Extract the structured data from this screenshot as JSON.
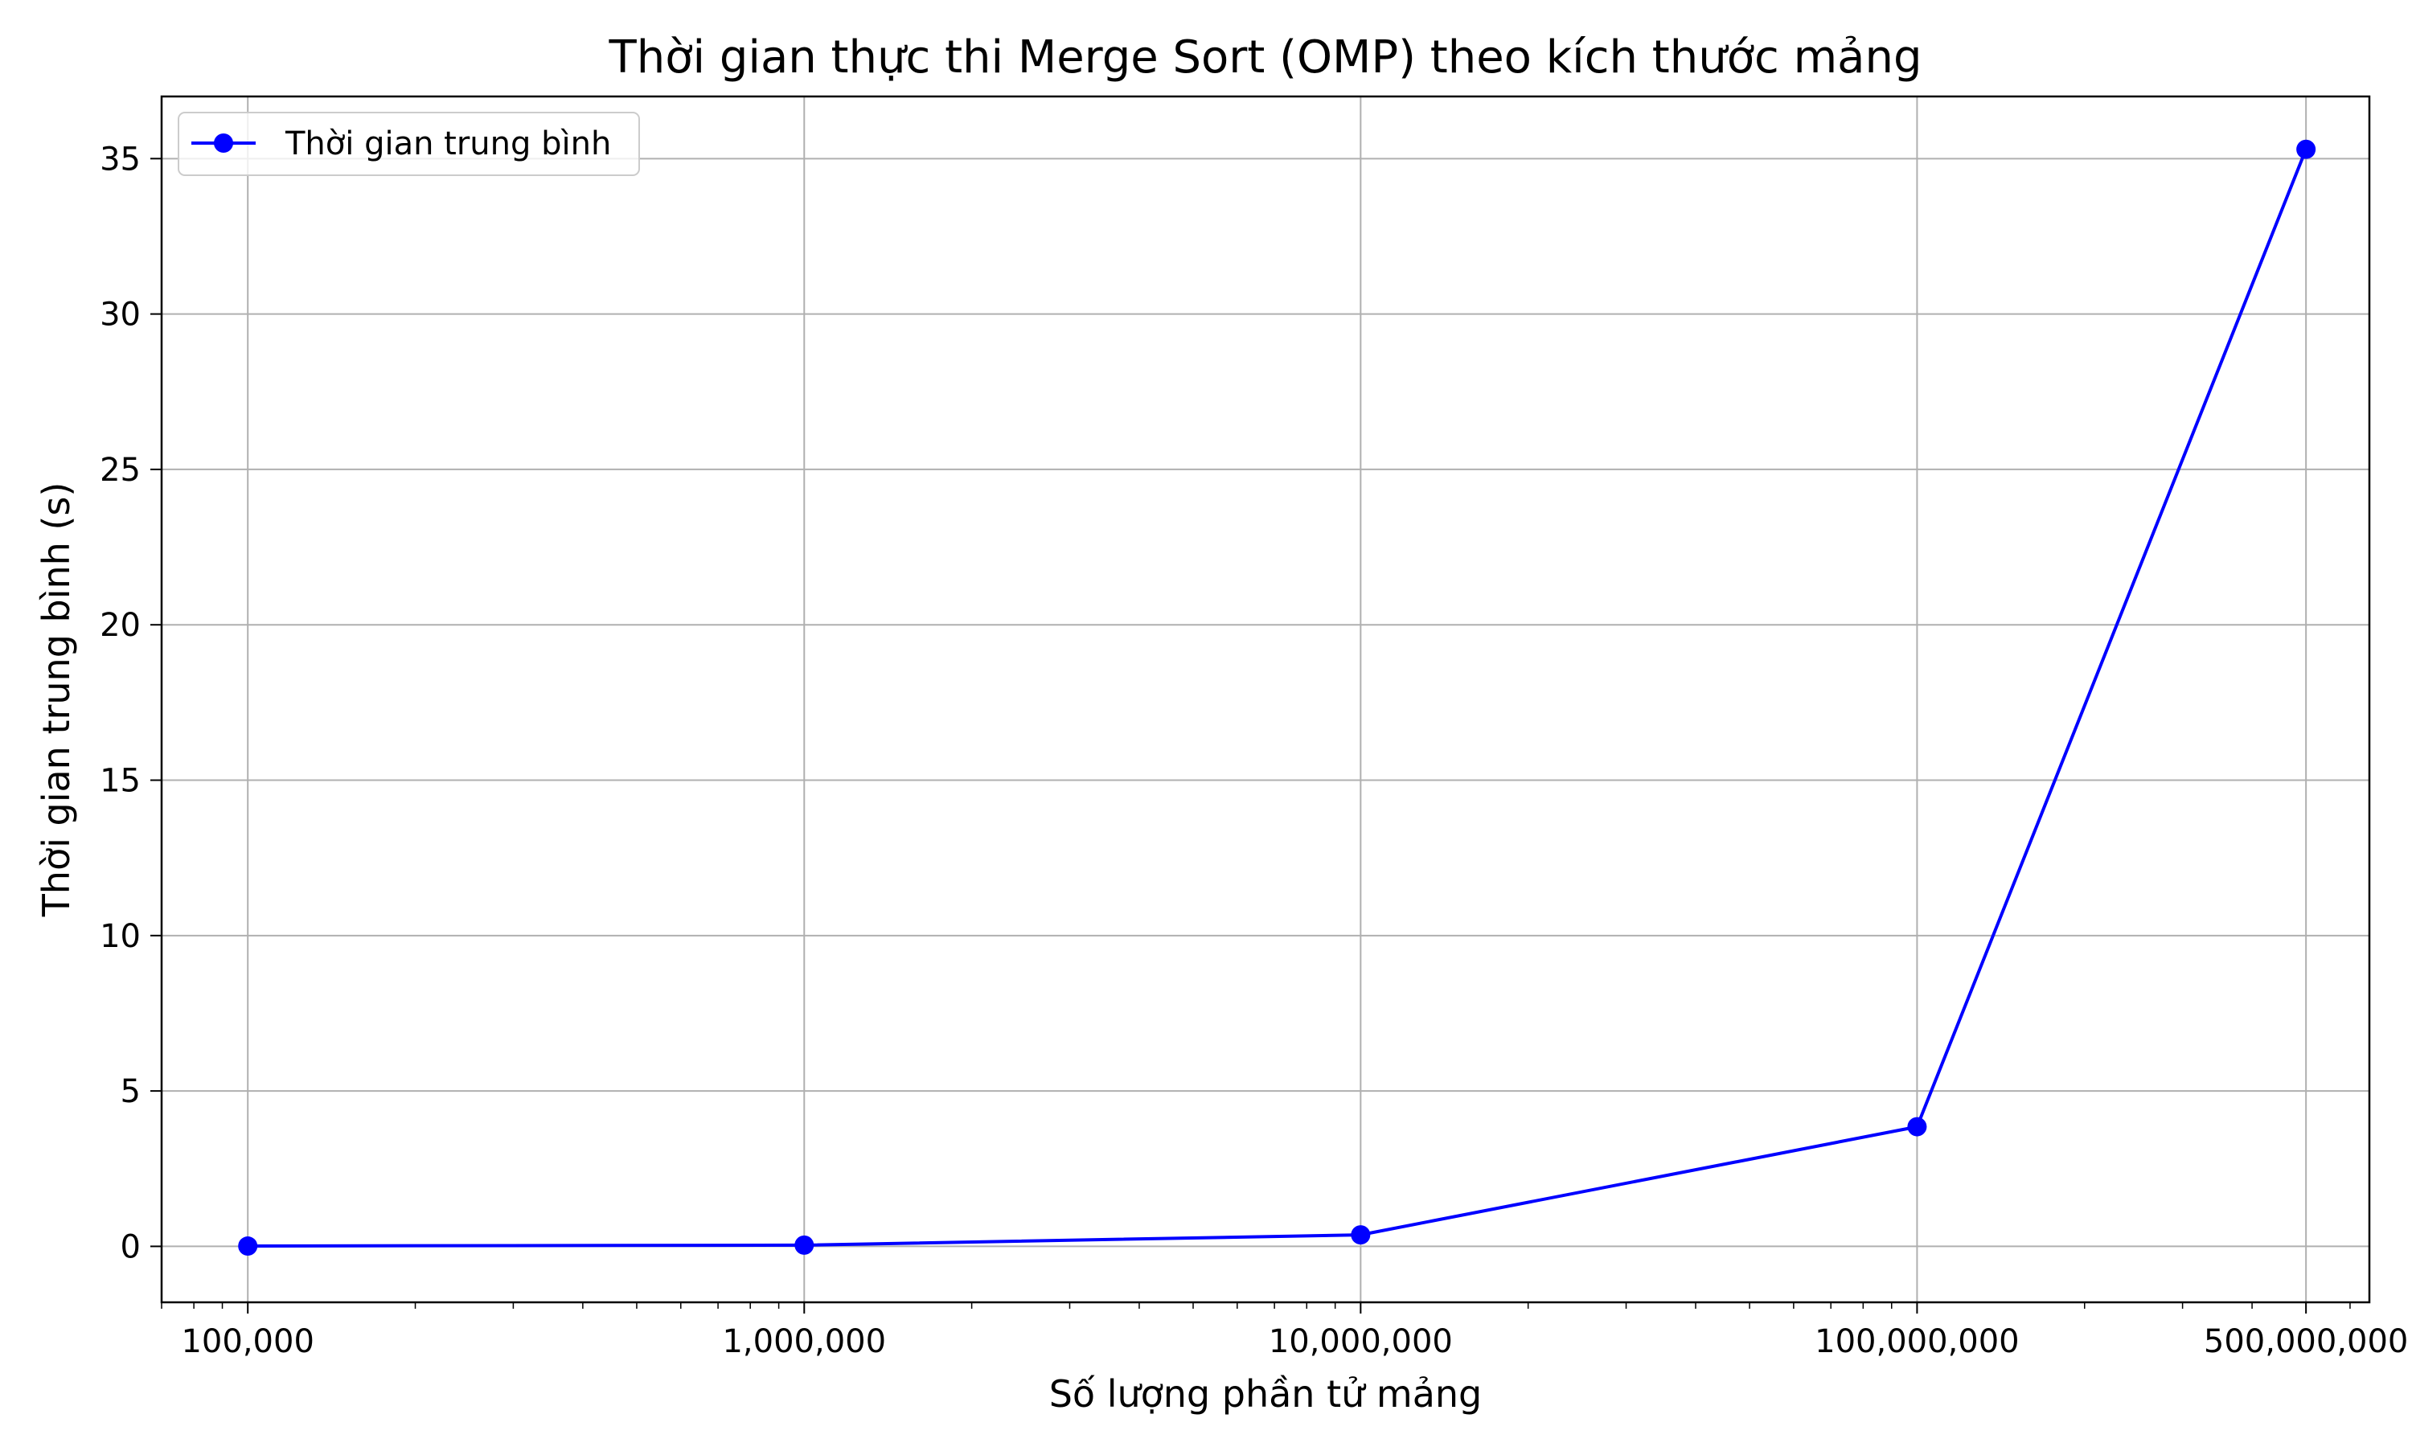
{
  "chart_data": {
    "type": "line",
    "title": "Thời gian thực thi Merge Sort (OMP) theo kích thước mảng",
    "xlabel": "Số lượng phần tử mảng",
    "ylabel": "Thời gian trung bình (s)",
    "x_scale": "log",
    "xlim": [
      70000,
      650000000
    ],
    "ylim": [
      -1.8,
      37
    ],
    "x_ticks": [
      {
        "value": 100000,
        "label": "100,000"
      },
      {
        "value": 1000000,
        "label": "1,000,000"
      },
      {
        "value": 10000000,
        "label": "10,000,000"
      },
      {
        "value": 100000000,
        "label": "100,000,000"
      },
      {
        "value": 500000000,
        "label": "500,000,000"
      }
    ],
    "y_ticks": [
      {
        "value": 0,
        "label": "0"
      },
      {
        "value": 5,
        "label": "5"
      },
      {
        "value": 10,
        "label": "10"
      },
      {
        "value": 15,
        "label": "15"
      },
      {
        "value": 20,
        "label": "20"
      },
      {
        "value": 25,
        "label": "25"
      },
      {
        "value": 30,
        "label": "30"
      },
      {
        "value": 35,
        "label": "35"
      }
    ],
    "grid": true,
    "legend_position": "top-left",
    "series": [
      {
        "name": "Thời gian trung bình",
        "color": "#0000ff",
        "marker": "circle",
        "x": [
          100000,
          1000000,
          10000000,
          100000000,
          500000000
        ],
        "y": [
          0.01,
          0.04,
          0.37,
          3.85,
          35.3
        ]
      }
    ]
  }
}
